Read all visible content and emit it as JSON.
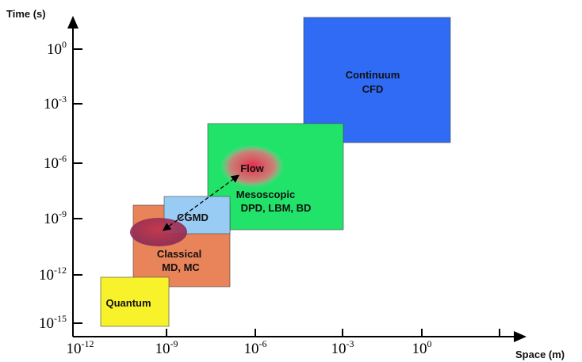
{
  "axes": {
    "y_label": "Time (s)",
    "x_label": "Space (m)",
    "x_ticks": [
      {
        "base": "10",
        "exp": "-12"
      },
      {
        "base": "10",
        "exp": "-9"
      },
      {
        "base": "10",
        "exp": "-6"
      },
      {
        "base": "10",
        "exp": "-3"
      },
      {
        "base": "10",
        "exp": "0"
      }
    ],
    "y_ticks": [
      {
        "base": "10",
        "exp": "0"
      },
      {
        "base": "10",
        "exp": "-3"
      },
      {
        "base": "10",
        "exp": "-6"
      },
      {
        "base": "10",
        "exp": "-9"
      },
      {
        "base": "10",
        "exp": "-12"
      },
      {
        "base": "10",
        "exp": "-15"
      }
    ]
  },
  "regions": [
    {
      "lines": [
        "Continuum",
        "CFD"
      ]
    },
    {
      "lines": [
        "Mesoscopic",
        "DPD, LBM, BD"
      ]
    },
    {
      "lines": [
        "Classical",
        "MD, MC"
      ]
    },
    {
      "lines": [
        "CGMD"
      ]
    },
    {
      "lines": [
        "Quantum"
      ]
    }
  ],
  "annotations": {
    "flow": "Flow"
  }
}
